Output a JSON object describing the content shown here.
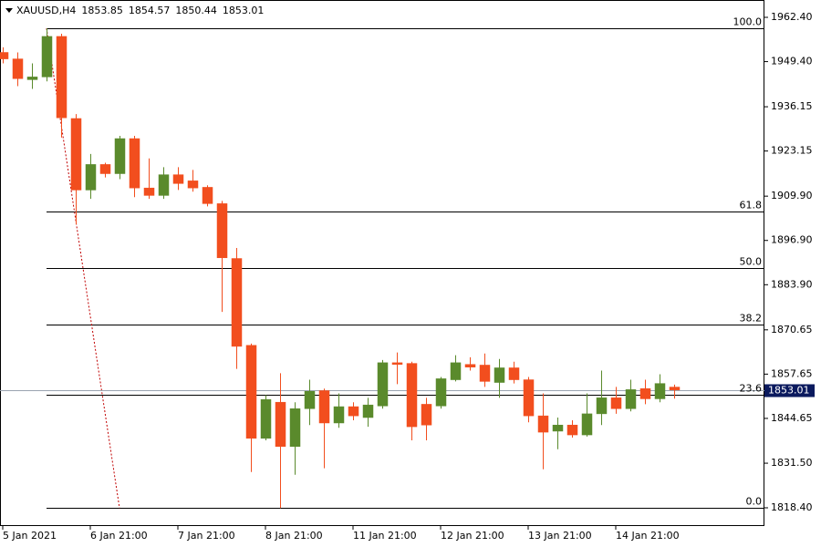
{
  "chart_data": {
    "type": "candlestick",
    "symbol": "XAUUSD,H4",
    "categories": [
      "5 Jan 2021",
      null,
      null,
      null,
      null,
      null,
      "6 Jan 21:00",
      null,
      null,
      null,
      null,
      null,
      "7 Jan 21:00",
      null,
      null,
      null,
      null,
      null,
      "8 Jan 21:00",
      null,
      null,
      null,
      null,
      null,
      "11 Jan 21:00",
      null,
      null,
      null,
      null,
      null,
      "12 Jan 21:00",
      null,
      null,
      null,
      null,
      null,
      "13 Jan 21:00",
      null,
      null,
      null,
      null,
      null,
      "14 Jan 21:00",
      null,
      null,
      null,
      null
    ],
    "open": [
      1952.1,
      1950.2,
      1944.1,
      1944.9,
      1956.8,
      1932.7,
      1911.7,
      1919.2,
      1916.5,
      1926.8,
      1912.3,
      1910.1,
      1916.2,
      1914.4,
      1912.5,
      1907.7,
      1891.6,
      1866.1,
      1838.8,
      1849.4,
      1836.4,
      1847.5,
      1852.8,
      1843.3,
      1848.1,
      1844.9,
      1848.3,
      1861.0,
      1860.8,
      1848.8,
      1848.3,
      1856.0,
      1860.5,
      1860.3,
      1855.2,
      1859.5,
      1856.0,
      1845.4,
      1840.9,
      1842.7,
      1839.8,
      1846.0,
      1850.7,
      1847.5,
      1853.4,
      1850.4,
      1853.85
    ],
    "high": [
      1953.6,
      1952.1,
      1948.9,
      1959.2,
      1957.6,
      1934.0,
      1922.3,
      1919.7,
      1927.6,
      1927.6,
      1921.0,
      1918.4,
      1918.4,
      1917.6,
      1913.1,
      1908.5,
      1894.7,
      1866.6,
      1851.5,
      1857.9,
      1849.4,
      1856.0,
      1853.4,
      1852.0,
      1849.4,
      1850.7,
      1861.8,
      1864.0,
      1861.3,
      1850.7,
      1856.8,
      1863.2,
      1862.6,
      1863.7,
      1862.1,
      1861.3,
      1856.8,
      1852.0,
      1844.9,
      1844.1,
      1852.0,
      1858.7,
      1853.9,
      1856.0,
      1856.0,
      1857.6,
      1854.57
    ],
    "low": [
      1948.9,
      1942.2,
      1941.4,
      1943.6,
      1927.1,
      1901.6,
      1909.1,
      1915.4,
      1914.9,
      1909.6,
      1909.1,
      1909.1,
      1911.7,
      1911.2,
      1906.9,
      1875.9,
      1859.2,
      1828.9,
      1838.2,
      1818.3,
      1828.1,
      1842.7,
      1830.0,
      1841.9,
      1844.1,
      1842.2,
      1847.5,
      1854.7,
      1838.2,
      1838.2,
      1847.5,
      1855.5,
      1858.7,
      1853.9,
      1850.7,
      1854.9,
      1843.5,
      1829.7,
      1835.6,
      1839.0,
      1839.3,
      1842.7,
      1846.0,
      1846.7,
      1848.8,
      1849.4,
      1850.44
    ],
    "close": [
      1950.2,
      1944.4,
      1944.9,
      1956.8,
      1932.9,
      1911.7,
      1919.2,
      1916.5,
      1926.8,
      1912.3,
      1910.1,
      1916.2,
      1913.6,
      1912.3,
      1907.7,
      1891.8,
      1865.8,
      1838.8,
      1850.2,
      1836.4,
      1847.5,
      1852.6,
      1843.3,
      1848.1,
      1845.4,
      1848.6,
      1861.0,
      1860.5,
      1842.2,
      1842.7,
      1856.3,
      1861.0,
      1859.7,
      1855.5,
      1859.5,
      1856.0,
      1845.4,
      1840.6,
      1842.7,
      1839.8,
      1846.0,
      1850.7,
      1847.5,
      1853.1,
      1850.4,
      1854.9,
      1853.01
    ],
    "up_color": "#5a8a2c",
    "down_color": "#f24e1e",
    "ylim": [
      1813.05,
      1967.49
    ],
    "yticks": [
      {
        "value": 1962.4,
        "label": "1962.40"
      },
      {
        "value": 1949.4,
        "label": "1949.40"
      },
      {
        "value": 1936.15,
        "label": "1936.15"
      },
      {
        "value": 1923.15,
        "label": "1923.15"
      },
      {
        "value": 1909.9,
        "label": "1909.90"
      },
      {
        "value": 1896.9,
        "label": "1896.90"
      },
      {
        "value": 1883.9,
        "label": "1883.90"
      },
      {
        "value": 1870.65,
        "label": "1870.65"
      },
      {
        "value": 1857.65,
        "label": "1857.65"
      },
      {
        "value": 1844.65,
        "label": "1844.65"
      },
      {
        "value": 1831.5,
        "label": "1831.50"
      },
      {
        "value": 1818.4,
        "label": "1818.40"
      }
    ],
    "fibonacci": {
      "high": 1959.22,
      "low": 1818.33,
      "color": "#c00000",
      "levels": [
        {
          "value": 100,
          "label": "100.0"
        },
        61.8,
        {
          "value": 50,
          "label": "50.0"
        },
        38.2,
        23.6,
        {
          "value": 0,
          "label": "0.0"
        }
      ]
    }
  }
}
